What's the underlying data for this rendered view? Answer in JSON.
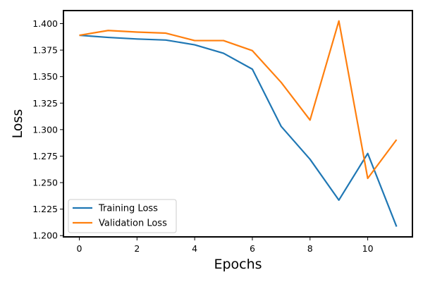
{
  "chart_data": {
    "type": "line",
    "title": "",
    "xlabel": "Epochs",
    "ylabel": "Loss",
    "x": [
      0,
      1,
      2,
      3,
      4,
      5,
      6,
      7,
      8,
      9,
      10,
      11
    ],
    "xlim": [
      -0.55,
      11.55
    ],
    "ylim": [
      1.1988,
      1.4123
    ],
    "xticks": [
      0,
      2,
      4,
      6,
      8,
      10
    ],
    "xtick_labels": [
      "0",
      "2",
      "4",
      "6",
      "8",
      "10"
    ],
    "yticks": [
      1.2,
      1.225,
      1.25,
      1.275,
      1.3,
      1.325,
      1.35,
      1.375,
      1.4
    ],
    "ytick_labels": [
      "1.200",
      "1.225",
      "1.250",
      "1.275",
      "1.300",
      "1.325",
      "1.350",
      "1.375",
      "1.400"
    ],
    "grid": false,
    "legend_position": "lower-left",
    "series": [
      {
        "name": "Training Loss",
        "color": "#1f77b4",
        "values": [
          1.389,
          1.387,
          1.3855,
          1.3845,
          1.38,
          1.372,
          1.357,
          1.303,
          1.272,
          1.2335,
          1.2775,
          1.2085
        ]
      },
      {
        "name": "Validation Loss",
        "color": "#ff7f0e",
        "values": [
          1.389,
          1.3935,
          1.392,
          1.391,
          1.384,
          1.384,
          1.3745,
          1.3445,
          1.309,
          1.4025,
          1.254,
          1.2905
        ]
      }
    ]
  }
}
